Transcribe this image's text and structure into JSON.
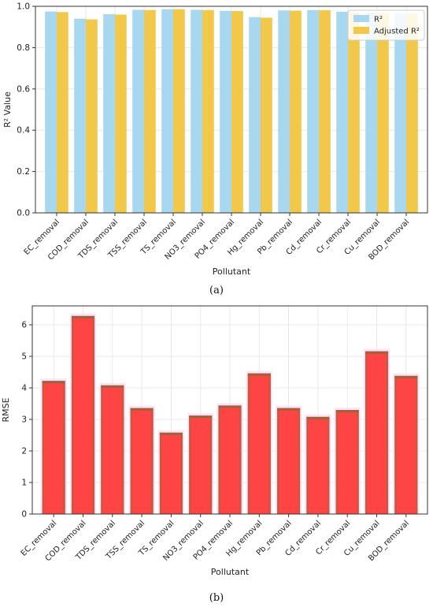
{
  "categories": [
    "EC_removal",
    "COD_removal",
    "TDS_removal",
    "TSS_removal",
    "TS_removal",
    "NO3_removal",
    "PO4_removal",
    "Hg_removal",
    "Pb_removal",
    "Cd_removal",
    "Cr_removal",
    "Cu_removal",
    "BOD_removal"
  ],
  "chart_data": [
    {
      "type": "bar",
      "caption": "(a)",
      "xlabel": "Pollutant",
      "ylabel": "R² Value",
      "ylim": [
        0,
        1.0
      ],
      "yticks": [
        "0.0",
        "0.2",
        "0.4",
        "0.6",
        "0.8",
        "1.0"
      ],
      "grid": true,
      "legend_position": "top-right",
      "series": [
        {
          "name": "R²",
          "color": "#a8d8ef",
          "values": [
            0.975,
            0.94,
            0.962,
            0.983,
            0.986,
            0.983,
            0.978,
            0.948,
            0.98,
            0.982,
            0.974,
            0.97,
            0.966
          ]
        },
        {
          "name": "Adjusted R²",
          "color": "#f2c84b",
          "values": [
            0.972,
            0.937,
            0.96,
            0.982,
            0.986,
            0.982,
            0.977,
            0.945,
            0.979,
            0.981,
            0.972,
            0.968,
            0.964
          ]
        }
      ]
    },
    {
      "type": "bar",
      "caption": "(b)",
      "xlabel": "Pollutant",
      "ylabel": "RMSE",
      "ylim": [
        0,
        6.6
      ],
      "yticks": [
        "0",
        "1",
        "2",
        "3",
        "4",
        "5",
        "6"
      ],
      "grid": true,
      "series": [
        {
          "name": "",
          "color": "#ff4444",
          "values": [
            4.22,
            6.28,
            4.08,
            3.36,
            2.58,
            3.12,
            3.44,
            4.46,
            3.36,
            3.08,
            3.3,
            5.16,
            4.38
          ]
        }
      ]
    }
  ]
}
